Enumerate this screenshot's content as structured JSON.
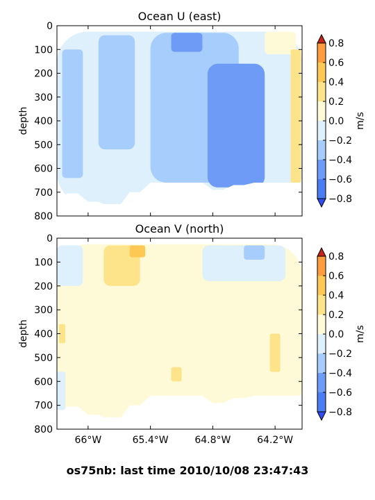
{
  "suptitle": "os75nb: last time 2010/10/08 23:47:43",
  "colorbar_levels": [
    -0.8,
    -0.6,
    -0.4,
    -0.2,
    0.0,
    0.2,
    0.4,
    0.6,
    0.8
  ],
  "colorbar_tick_labels": [
    "−0.8",
    "−0.6",
    "−0.4",
    "−0.2",
    "0.0",
    "0.2",
    "0.4",
    "0.6",
    "0.8"
  ],
  "colorbar_colors": [
    "#2e4cf0",
    "#4c7cf2",
    "#6d9bf5",
    "#a6cdfb",
    "#def0fc",
    "#fefad8",
    "#fde48a",
    "#fdc853",
    "#fd9d3d",
    "#e85b1e",
    "#c4251a"
  ],
  "colorbar_label": "m/s",
  "chart_data": [
    {
      "type": "heatmap",
      "title": "Ocean U (east)",
      "ylabel": "depth",
      "ylim": [
        800,
        0
      ],
      "y_ticks": [
        "0",
        "100",
        "200",
        "300",
        "400",
        "500",
        "600",
        "700",
        "800"
      ],
      "x_ticks": [
        "66°W",
        "65.4°W",
        "64.8°W",
        "64.2°W"
      ],
      "x_tick_lons": [
        -66.0,
        -65.4,
        -64.8,
        -64.2
      ],
      "xlim": [
        -66.3,
        -63.94
      ],
      "y_data_lim": [
        25,
        745
      ],
      "colorbar_label": "m/s",
      "profiles_lon": [
        -66.3,
        -66.1,
        -65.9,
        -65.7,
        -65.5,
        -65.3,
        -65.1,
        -64.9,
        -64.7,
        -64.5,
        -64.3,
        -64.1,
        -63.94
      ],
      "profile_max_depth": [
        745,
        705,
        740,
        760,
        700,
        660,
        660,
        660,
        690,
        670,
        660,
        660,
        660
      ],
      "regions": [
        {
          "lon": [
            -66.3,
            -63.94
          ],
          "depth": [
            25,
            750
          ],
          "value": -0.1
        },
        {
          "lon": [
            -66.25,
            -66.05
          ],
          "depth": [
            100,
            640
          ],
          "value": -0.3
        },
        {
          "lon": [
            -65.9,
            -65.55
          ],
          "depth": [
            40,
            520
          ],
          "value": -0.3
        },
        {
          "lon": [
            -65.4,
            -64.55
          ],
          "depth": [
            30,
            660
          ],
          "value": -0.3
        },
        {
          "lon": [
            -65.2,
            -64.9
          ],
          "depth": [
            30,
            110
          ],
          "value": -0.5
        },
        {
          "lon": [
            -64.85,
            -64.3
          ],
          "depth": [
            160,
            680
          ],
          "value": -0.5
        },
        {
          "lon": [
            -64.3,
            -64.0
          ],
          "depth": [
            25,
            120
          ],
          "value": 0.1
        },
        {
          "lon": [
            -64.05,
            -63.95
          ],
          "depth": [
            100,
            660
          ],
          "value": 0.3
        }
      ]
    },
    {
      "type": "heatmap",
      "title": "Ocean V (north)",
      "ylabel": "depth",
      "ylim": [
        800,
        0
      ],
      "y_ticks": [
        "0",
        "100",
        "200",
        "300",
        "400",
        "500",
        "600",
        "700",
        "800"
      ],
      "x_ticks": [
        "66°W",
        "65.4°W",
        "64.8°W",
        "64.2°W"
      ],
      "x_tick_lons": [
        -66.0,
        -65.4,
        -64.8,
        -64.2
      ],
      "xlim": [
        -66.3,
        -63.94
      ],
      "y_data_lim": [
        25,
        745
      ],
      "colorbar_label": "m/s",
      "profiles_lon": [
        -66.3,
        -66.1,
        -65.9,
        -65.7,
        -65.5,
        -65.3,
        -65.1,
        -64.9,
        -64.7,
        -64.5,
        -64.3,
        -64.1,
        -63.94
      ],
      "profile_max_depth": [
        745,
        705,
        740,
        760,
        700,
        660,
        660,
        660,
        690,
        670,
        660,
        660,
        660
      ],
      "regions": [
        {
          "lon": [
            -66.3,
            -63.94
          ],
          "depth": [
            25,
            750
          ],
          "value": 0.1
        },
        {
          "lon": [
            -66.3,
            -66.05
          ],
          "depth": [
            30,
            200
          ],
          "value": -0.1
        },
        {
          "lon": [
            -64.9,
            -64.1
          ],
          "depth": [
            30,
            180
          ],
          "value": -0.1
        },
        {
          "lon": [
            -64.5,
            -64.3
          ],
          "depth": [
            30,
            90
          ],
          "value": -0.3
        },
        {
          "lon": [
            -66.3,
            -66.22
          ],
          "depth": [
            560,
            720
          ],
          "value": -0.1
        },
        {
          "lon": [
            -65.85,
            -65.5
          ],
          "depth": [
            30,
            200
          ],
          "value": 0.3
        },
        {
          "lon": [
            -65.6,
            -65.45
          ],
          "depth": [
            30,
            80
          ],
          "value": 0.5
        },
        {
          "lon": [
            -66.28,
            -66.22
          ],
          "depth": [
            360,
            440
          ],
          "value": 0.3
        },
        {
          "lon": [
            -64.25,
            -64.15
          ],
          "depth": [
            400,
            560
          ],
          "value": 0.3
        },
        {
          "lon": [
            -65.2,
            -65.1
          ],
          "depth": [
            540,
            600
          ],
          "value": 0.3
        }
      ]
    }
  ]
}
